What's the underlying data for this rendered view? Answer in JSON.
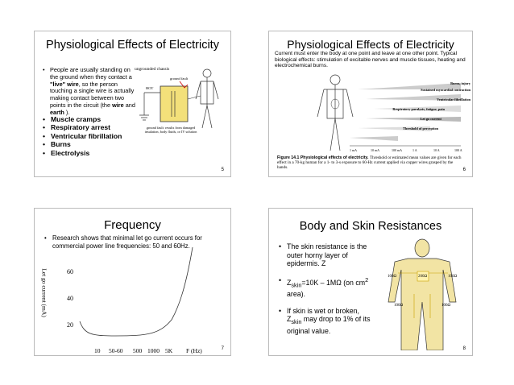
{
  "slides": [
    {
      "title": "Physiological Effects of Electricity",
      "bullet_parts": [
        "People are usually standing on the ground when they contact a ",
        "\"live\" wire",
        ", so the person touching a single wire is actually making contact between two points in the circuit (the ",
        "wire",
        " and ",
        "earth",
        " )."
      ],
      "effects": [
        "Muscle cramps",
        "Respiratory arrest",
        "Ventricular fibrillation",
        "Burns",
        "Electrolysis"
      ],
      "figure_labels": {
        "chassis": "ungrounded chassis",
        "fault": "ground fault",
        "hot": "HOT",
        "note": "ground fault: results from damaged insulation, body fluids, or IV solution"
      },
      "page": "5"
    },
    {
      "title": "Physiological Effects of Electricity",
      "text": "Current must enter the body at one point and leave at one other point. Typical biological effects: stimulation of excitable nerves and muscle tissues, heating and electrochemical burns.",
      "effect_labels": [
        "Burns, injury",
        "Sustained myocardial contraction",
        "Ventricular fibrillation",
        "Respiratory paralysis, fatigue, pain",
        "Let go current",
        "Threshold of perception"
      ],
      "scale_labels": [
        "1 mA",
        "10 mA",
        "100 mA",
        "1 A",
        "10 A",
        "100 A"
      ],
      "caption_head": "Figure 14.1   Physiological effects of electricity.",
      "caption": "Threshold or estimated mean values are given for each effect in a 70-kg human for a 1- to 3-s exposure to 60-Hz current applied via copper wires grasped by the hands.",
      "page": "6"
    },
    {
      "title": "Frequency",
      "bullet": "Research shows that minimal let go current occurs for commercial power line frequencies: 50 and 60Hz.",
      "y_label": "Let go current (mA)",
      "y_ticks": [
        "60",
        "40",
        "20"
      ],
      "x_ticks": [
        "10",
        "50-60",
        "500",
        "1000",
        "5K",
        "F (Hz)"
      ],
      "page": "7"
    },
    {
      "title": "Body and Skin Resistances",
      "bullets": [
        [
          "The skin resistance is the outer horny layer of epidermis. Z"
        ],
        [
          "Z",
          "skin",
          "=10K – 1MΩ (on cm",
          "2",
          " area)."
        ],
        [
          "If skin is wet or broken, Z",
          "skin",
          " may drop to 1% of its original value."
        ]
      ],
      "figure_labels": [
        "100Ω",
        "200Ω",
        "100Ω",
        "100Ω",
        "100Ω"
      ],
      "page": "8"
    }
  ]
}
